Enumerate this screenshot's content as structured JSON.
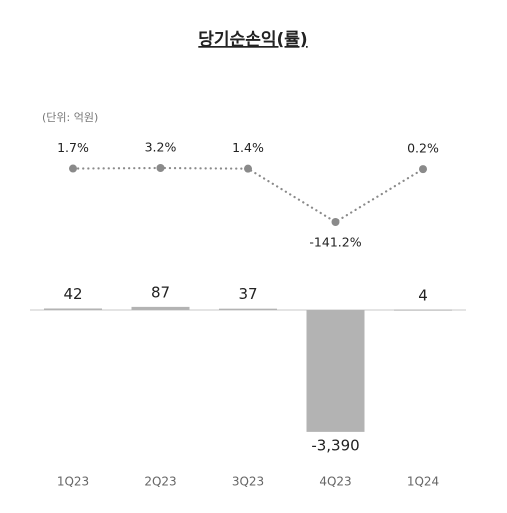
{
  "chart_data": [
    {
      "type": "bar",
      "title": "당기순손익(률)",
      "unit_note": "(단위: 억원)",
      "categories": [
        "1Q23",
        "2Q23",
        "3Q23",
        "4Q23",
        "1Q24"
      ],
      "values": [
        42,
        87,
        37,
        -3390,
        4
      ],
      "value_labels": [
        "42",
        "87",
        "37",
        "-3,390",
        "4"
      ],
      "colors": [
        "#b3b3b3",
        "#b3b3b3",
        "#b3b3b3",
        "#b3b3b3",
        "#8f8f8f"
      ]
    },
    {
      "type": "line",
      "values": [
        1.7,
        3.2,
        1.4,
        -141.2,
        0.2
      ],
      "value_labels": [
        "1.7%",
        "3.2%",
        "1.4%",
        "-141.2%",
        "0.2%"
      ],
      "color": "#8a8a8a"
    }
  ]
}
